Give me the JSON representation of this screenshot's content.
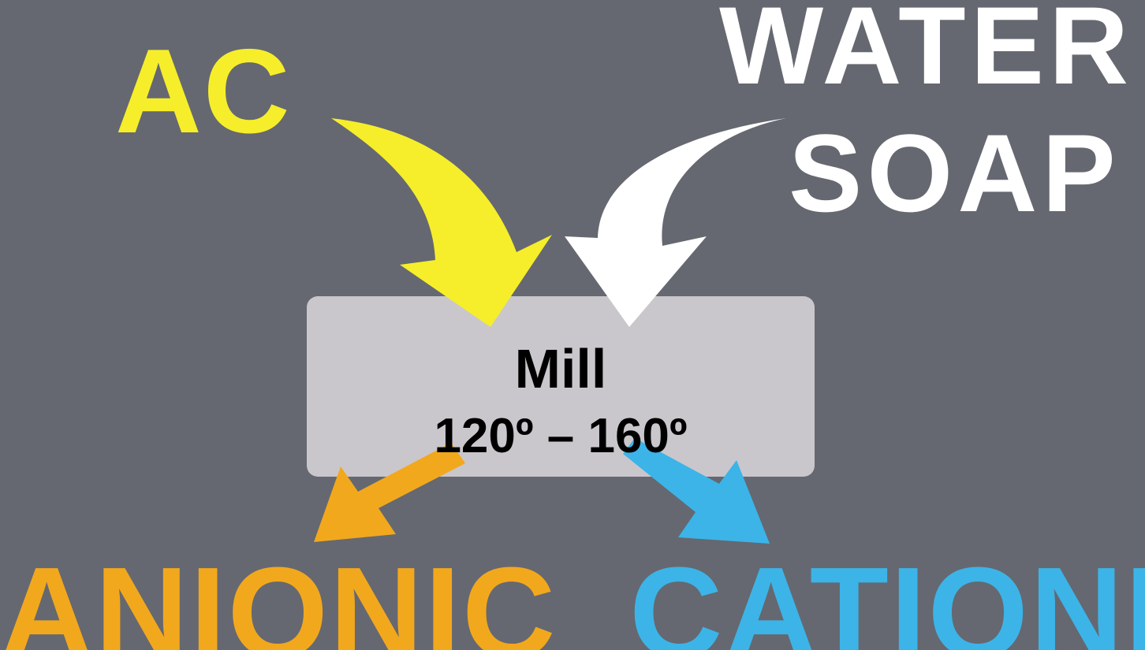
{
  "inputs": {
    "ac": {
      "label": "AC",
      "color": "#f6ee2a"
    },
    "water": {
      "label": "WATER",
      "color": "#ffffff"
    },
    "soap": {
      "label": "SOAP",
      "color": "#ffffff"
    }
  },
  "process": {
    "title": "Mill",
    "temperature_range": "120º  – 160º",
    "box_color": "#cac7cc"
  },
  "outputs": {
    "anionic": {
      "label": "ANIONIC",
      "color": "#f2a81d"
    },
    "cationic": {
      "label": "CATIONIC",
      "color": "#3cb4e8"
    }
  },
  "background_color": "#656870"
}
